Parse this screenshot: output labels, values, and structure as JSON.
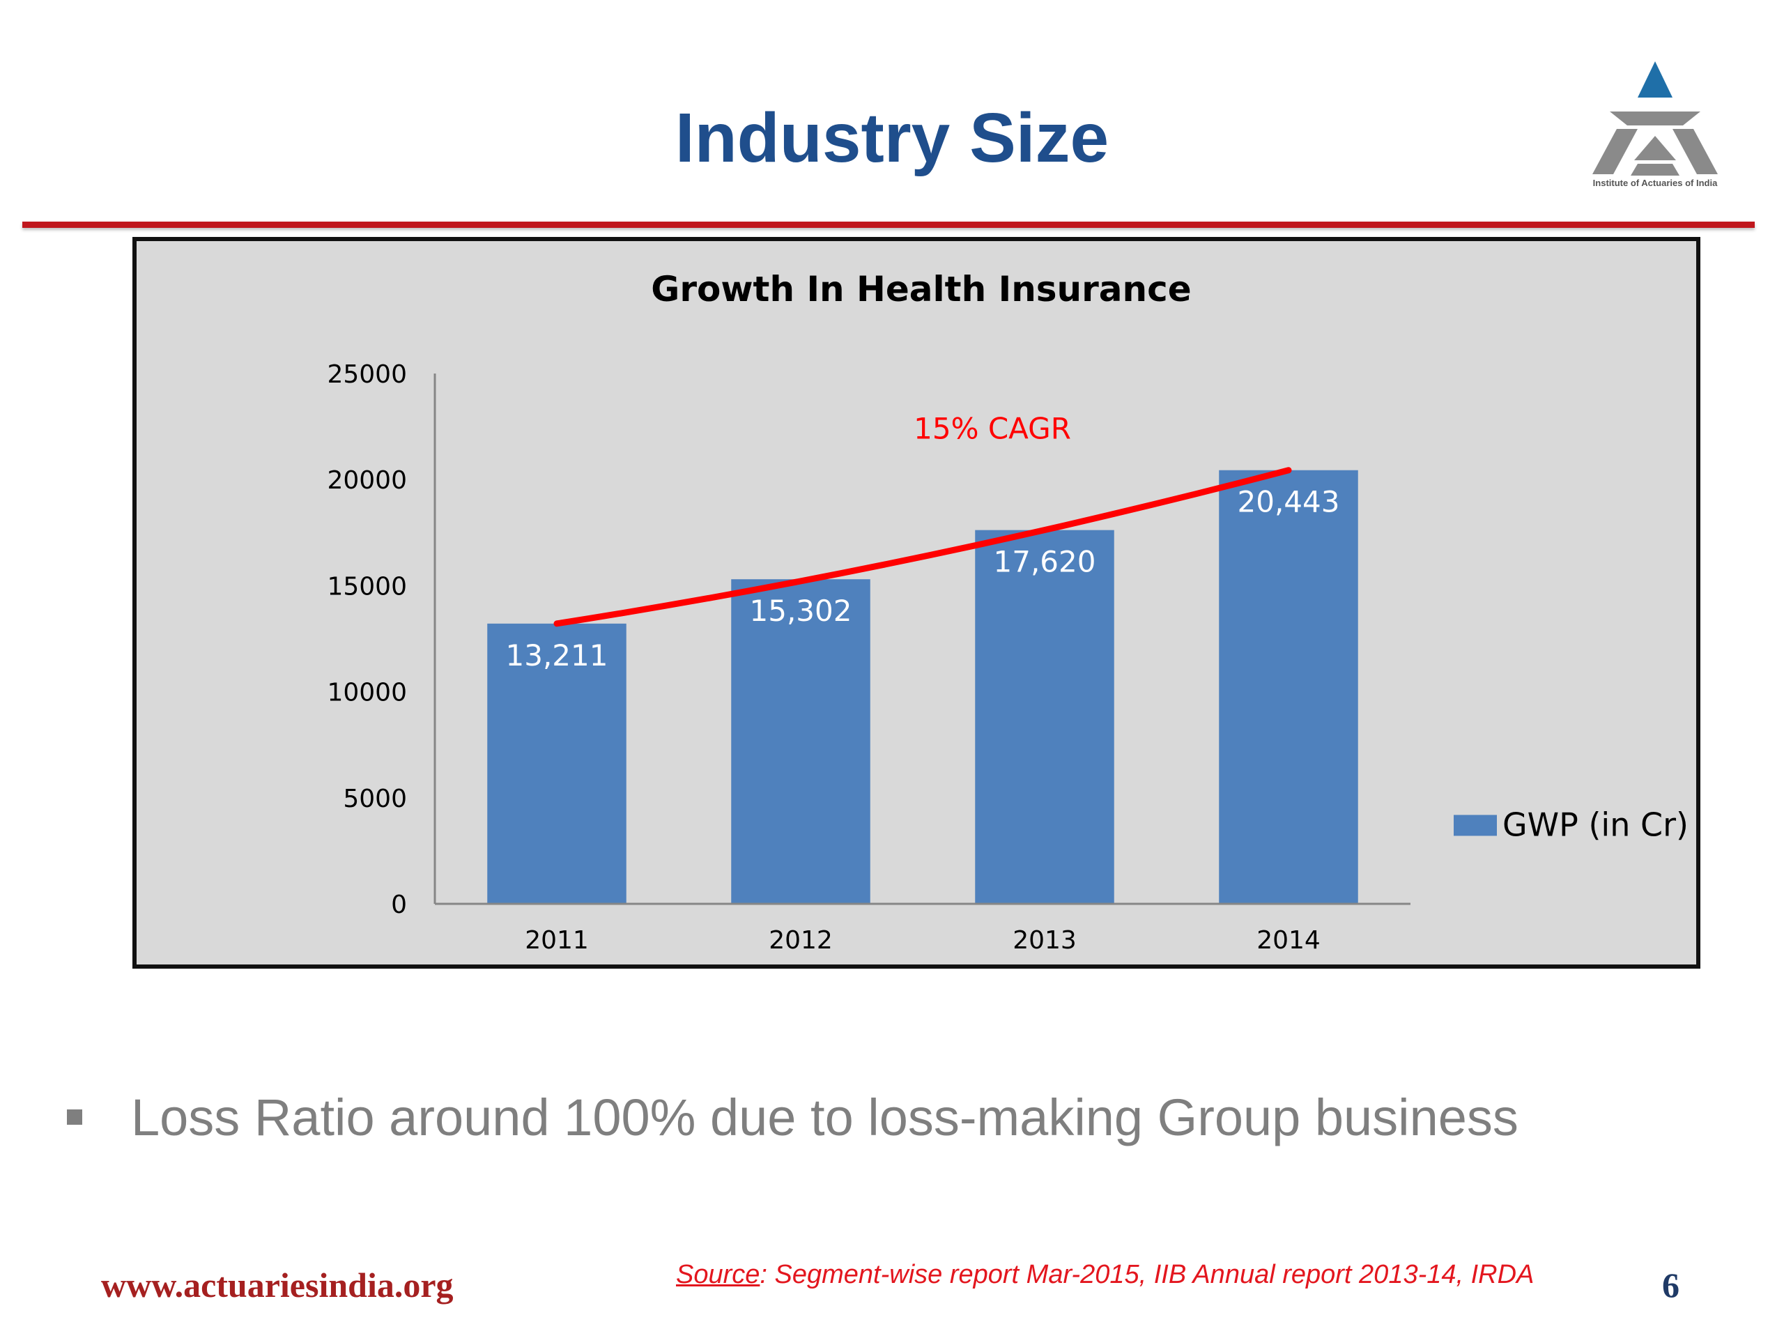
{
  "slide": {
    "title": "Industry Size",
    "logo_text": "Institute of Actuaries of India",
    "bullet": "Loss Ratio around 100% due to loss-making Group business",
    "footer_url": "www.actuariesindia.org",
    "source_label": "Source",
    "source_text": ": Segment-wise report Mar-2015, IIB   Annual report 2013-14, IRDA",
    "page_number": "6"
  },
  "colors": {
    "title": "#1f4e8c",
    "bar": "#4f81bd",
    "trend": "#ff0000",
    "rule": "#c0171d",
    "chart_bg": "#d9d9d9"
  },
  "chart_data": {
    "type": "bar",
    "title": "Growth In Health Insurance",
    "categories": [
      "2011",
      "2012",
      "2013",
      "2014"
    ],
    "series": [
      {
        "name": "GWP (in Cr)",
        "values": [
          13211,
          15302,
          17620,
          20443
        ]
      }
    ],
    "data_labels": [
      "13,211",
      "15,302",
      "17,620",
      "20,443"
    ],
    "yticks": [
      "0",
      "5000",
      "10000",
      "15000",
      "20000",
      "25000"
    ],
    "ylim": [
      0,
      25000
    ],
    "trendline": {
      "label": "15% CAGR",
      "from": [
        0,
        13211
      ],
      "to": [
        3,
        20443
      ]
    },
    "legend_position": "right",
    "grid": false
  }
}
